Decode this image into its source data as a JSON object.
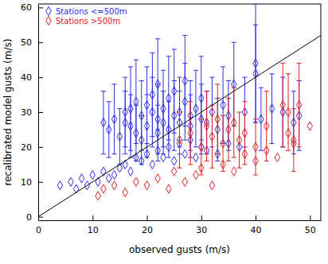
{
  "chart_data": {
    "type": "scatter",
    "x_label": "observed gusts (m/s)",
    "y_label": "recalibrated model gusts (m/s)",
    "xlim": [
      0,
      52
    ],
    "ylim": [
      -1,
      61
    ],
    "xticks": [
      0,
      10,
      20,
      30,
      40,
      50
    ],
    "yticks": [
      0,
      10,
      20,
      30,
      40,
      50,
      60
    ],
    "legend": "top-left",
    "diagonal": {
      "x": [
        0,
        60
      ],
      "y": [
        0,
        60
      ],
      "color": "#000000"
    },
    "series": [
      {
        "name": "Stations <=500m",
        "color": "#2d2df0",
        "marker": "diamond",
        "x": [
          12,
          13,
          14,
          15,
          16,
          16,
          17,
          17,
          18,
          18,
          19,
          19,
          20,
          20,
          21,
          21,
          22,
          22,
          22,
          23,
          23,
          24,
          24,
          25,
          25,
          26,
          26,
          27,
          27,
          28,
          28,
          29,
          30,
          30,
          31,
          32,
          33,
          34,
          35,
          36,
          38,
          40,
          41,
          43,
          45,
          47,
          48,
          40,
          4,
          6,
          7,
          8,
          9,
          10,
          11,
          12,
          13,
          14,
          15,
          16,
          17,
          18,
          19,
          20,
          21,
          22,
          23,
          24,
          25,
          26,
          27,
          28,
          29,
          30,
          31,
          33,
          35,
          37
        ],
        "values": [
          27,
          25,
          28,
          23,
          30,
          27,
          26,
          31,
          24,
          33,
          29,
          22,
          32,
          26,
          30,
          35,
          28,
          24,
          38,
          31,
          27,
          34,
          25,
          29,
          36,
          30,
          27,
          33,
          39,
          29,
          26,
          31,
          34,
          28,
          27,
          30,
          25,
          32,
          29,
          38,
          30,
          41,
          28,
          31,
          30,
          27,
          29,
          44,
          9,
          10,
          8,
          11,
          9,
          12,
          10,
          13,
          11,
          12,
          14,
          15,
          13,
          17,
          16,
          18,
          15,
          19,
          17,
          20,
          16,
          21,
          18,
          22,
          17,
          20,
          19,
          18,
          21,
          20
        ],
        "errors": [
          9,
          8,
          10,
          8,
          10,
          9,
          9,
          12,
          8,
          12,
          10,
          7,
          11,
          9,
          10,
          12,
          10,
          8,
          13,
          11,
          9,
          12,
          8,
          10,
          12,
          10,
          9,
          11,
          13,
          10,
          9,
          11,
          12,
          10,
          9,
          10,
          9,
          11,
          10,
          12,
          10,
          14,
          9,
          10,
          10,
          9,
          10,
          17,
          null,
          null,
          null,
          null,
          null,
          null,
          null,
          null,
          null,
          null,
          null,
          null,
          null,
          null,
          null,
          null,
          null,
          null,
          null,
          null,
          null,
          null,
          null,
          null,
          null,
          null,
          null,
          null,
          null,
          null
        ]
      },
      {
        "name": "Stations >500m",
        "color": "#e02020",
        "marker": "diamond",
        "x": [
          26,
          28,
          30,
          31,
          32,
          33,
          34,
          35,
          36,
          37,
          38,
          40,
          42,
          45,
          46,
          47,
          48,
          11,
          12,
          14,
          16,
          18,
          20,
          22,
          24,
          25,
          27,
          29,
          30,
          32,
          34,
          36,
          38,
          40,
          42,
          44,
          46,
          47,
          50
        ],
        "values": [
          22,
          24,
          20,
          26,
          23,
          28,
          21,
          25,
          27,
          22,
          24,
          20,
          26,
          32,
          30,
          22,
          32,
          6,
          8,
          9,
          7,
          10,
          9,
          11,
          8,
          13,
          10,
          12,
          14,
          9,
          15,
          13,
          18,
          16,
          19,
          17,
          24,
          21,
          26
        ],
        "errors": [
          8,
          9,
          8,
          10,
          9,
          10,
          8,
          9,
          10,
          8,
          9,
          8,
          10,
          12,
          11,
          9,
          12,
          null,
          null,
          null,
          null,
          null,
          null,
          null,
          null,
          null,
          null,
          null,
          null,
          null,
          null,
          null,
          null,
          null,
          null,
          null,
          null,
          null,
          null
        ]
      }
    ]
  }
}
